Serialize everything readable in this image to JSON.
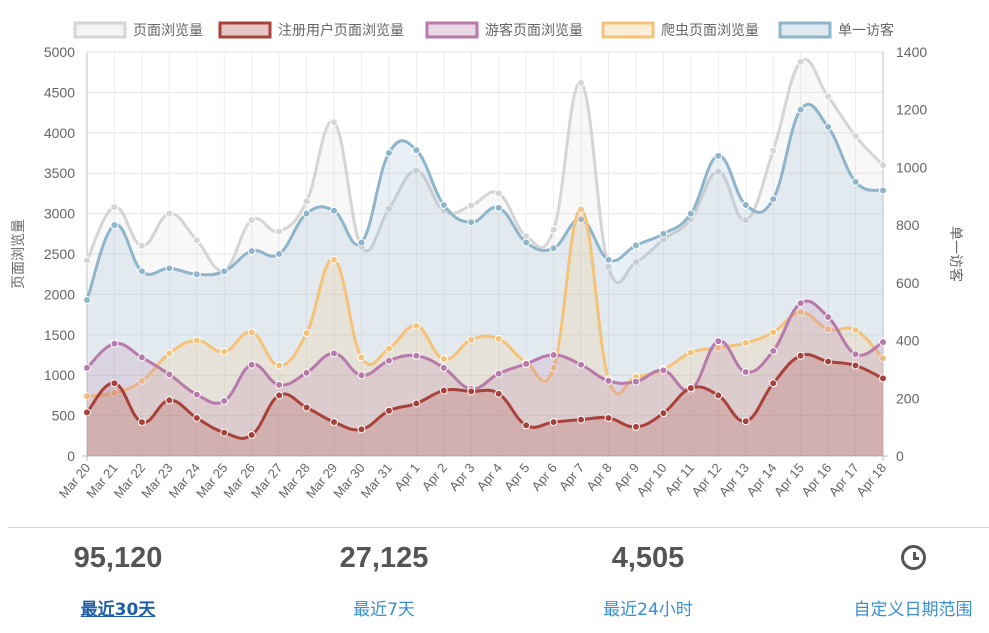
{
  "chart_data": {
    "type": "line",
    "categories": [
      "Mar 20",
      "Mar 21",
      "Mar 22",
      "Mar 23",
      "Mar 24",
      "Mar 25",
      "Mar 26",
      "Mar 27",
      "Mar 28",
      "Mar 29",
      "Mar 30",
      "Mar 31",
      "Apr 1",
      "Apr 2",
      "Apr 3",
      "Apr 4",
      "Apr 5",
      "Apr 6",
      "Apr 7",
      "Apr 8",
      "Apr 9",
      "Apr 10",
      "Apr 11",
      "Apr 12",
      "Apr 13",
      "Apr 14",
      "Apr 15",
      "Apr 16",
      "Apr 17",
      "Apr 18"
    ],
    "ylabel": "页面浏览量",
    "ylabel_right": "单一访客",
    "ylim": [
      0,
      5000
    ],
    "yticks": [
      0,
      500,
      1000,
      1500,
      2000,
      2500,
      3000,
      3500,
      4000,
      4500,
      5000
    ],
    "y2lim": [
      0,
      1400
    ],
    "y2ticks": [
      0,
      200,
      400,
      600,
      800,
      1000,
      1200,
      1400
    ],
    "legend_position": "top",
    "grid": true,
    "series": [
      {
        "name": "页面浏览量",
        "axis": "left",
        "color": "#d5d5d5",
        "fill": "rgba(220,220,220,0.2)",
        "values": [
          2420,
          3080,
          2600,
          3000,
          2670,
          2300,
          2920,
          2780,
          3150,
          4130,
          2590,
          3060,
          3530,
          3030,
          3100,
          3250,
          2720,
          2800,
          4620,
          2340,
          2400,
          2680,
          2930,
          3520,
          2920,
          3780,
          4880,
          4450,
          3960,
          3600
        ]
      },
      {
        "name": "注册用户页面浏览量",
        "axis": "left",
        "color": "#a9413b",
        "fill": "rgba(169,65,59,0.2)",
        "values": [
          540,
          900,
          420,
          690,
          470,
          290,
          260,
          750,
          600,
          420,
          330,
          560,
          650,
          810,
          800,
          770,
          380,
          420,
          450,
          470,
          360,
          530,
          840,
          750,
          430,
          900,
          1240,
          1170,
          1120,
          960
        ]
      },
      {
        "name": "游客页面浏览量",
        "axis": "left",
        "color": "#b77aaa",
        "fill": "rgba(183,122,170,0.2)",
        "values": [
          1090,
          1390,
          1220,
          1010,
          760,
          680,
          1130,
          880,
          1030,
          1270,
          1000,
          1180,
          1240,
          1090,
          830,
          1020,
          1140,
          1250,
          1130,
          930,
          920,
          1060,
          820,
          1420,
          1040,
          1300,
          1890,
          1720,
          1260,
          1410
        ]
      },
      {
        "name": "爬虫页面浏览量",
        "axis": "left",
        "color": "#f5c27a",
        "fill": "rgba(245,194,122,0.2)",
        "values": [
          740,
          780,
          930,
          1270,
          1430,
          1290,
          1530,
          1120,
          1520,
          2430,
          1220,
          1330,
          1610,
          1200,
          1440,
          1450,
          1160,
          1090,
          3050,
          950,
          980,
          1070,
          1280,
          1340,
          1400,
          1530,
          1780,
          1570,
          1560,
          1210
        ]
      },
      {
        "name": "单一访客",
        "axis": "right",
        "color": "#8fb5cb",
        "fill": "rgba(143,181,203,0.2)",
        "values": [
          540,
          800,
          640,
          650,
          630,
          640,
          710,
          700,
          840,
          850,
          740,
          1050,
          1060,
          870,
          810,
          860,
          740,
          720,
          820,
          680,
          730,
          770,
          840,
          1040,
          870,
          890,
          1200,
          1140,
          950,
          920
        ]
      }
    ]
  },
  "stats": [
    {
      "value": "95,120",
      "label": "最近30天"
    },
    {
      "value": "27,125",
      "label": "最近7天"
    },
    {
      "value": "4,505",
      "label": "最近24小时"
    },
    {
      "icon": "clock-icon",
      "label": "自定义日期范围"
    }
  ]
}
